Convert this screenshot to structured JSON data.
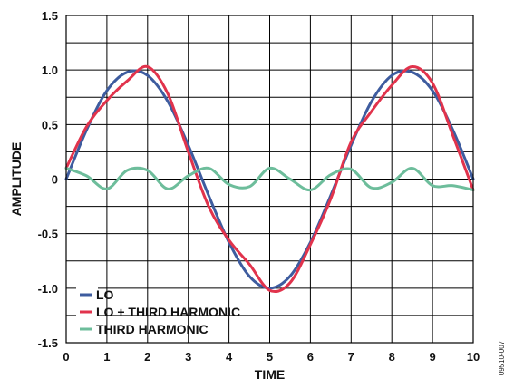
{
  "chart_data": {
    "type": "line",
    "title": "",
    "xlabel": "TIME",
    "ylabel": "AMPLITUDE",
    "xlim": [
      0,
      10
    ],
    "ylim": [
      -1.5,
      1.5
    ],
    "x_ticks": [
      "0",
      "1",
      "2",
      "3",
      "4",
      "5",
      "6",
      "7",
      "8",
      "9",
      "10"
    ],
    "y_ticks": [
      "1.5",
      "1.0",
      "0.5",
      "0",
      "-0.5",
      "-1.0",
      "-1.5"
    ],
    "grid": true,
    "legend_position": "bottom-left",
    "x": [
      0,
      0.5,
      1,
      1.5,
      2,
      2.5,
      3,
      3.5,
      4,
      4.5,
      5,
      5.5,
      6,
      6.5,
      7,
      7.5,
      8,
      8.5,
      9,
      9.5,
      10
    ],
    "series": [
      {
        "name": "LO",
        "color": "#3e5c9f",
        "values": [
          0,
          0.45,
          0.81,
          0.98,
          0.95,
          0.71,
          0.31,
          -0.15,
          -0.58,
          -0.89,
          -1.0,
          -0.89,
          -0.58,
          -0.15,
          0.31,
          0.71,
          0.95,
          0.98,
          0.81,
          0.45,
          0
        ]
      },
      {
        "name": "LO + THIRD HARMONIC",
        "color": "#e1334c",
        "values": [
          0.1,
          0.48,
          0.72,
          0.9,
          1.03,
          0.78,
          0.25,
          -0.25,
          -0.56,
          -0.78,
          -1.02,
          -0.95,
          -0.6,
          -0.18,
          0.34,
          0.62,
          0.86,
          1.03,
          0.88,
          0.4,
          -0.1
        ]
      },
      {
        "name": "THIRD HARMONIC",
        "color": "#6dbd9b",
        "values": [
          0.1,
          0.03,
          -0.09,
          0.08,
          0.08,
          -0.09,
          0.03,
          0.1,
          -0.05,
          -0.07,
          0.1,
          0.0,
          -0.1,
          0.04,
          0.09,
          -0.08,
          -0.03,
          0.1,
          -0.06,
          -0.06,
          -0.1
        ]
      }
    ]
  },
  "figure_id": "09510-007"
}
